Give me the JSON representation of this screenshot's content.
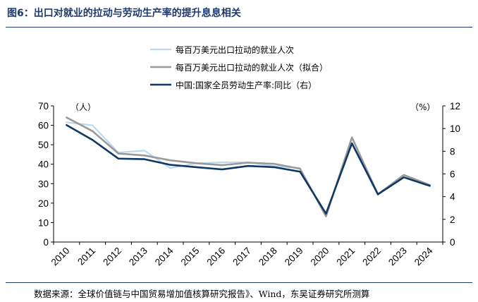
{
  "figure": {
    "title": "图6：出口对就业的拉动与劳动生产率的提升息息相关",
    "source": "数据来源：全球价值链与中国贸易增加值核算研究报告》、Wind，东吴证券研究所测算"
  },
  "chart_data": {
    "type": "line",
    "categories": [
      "2010",
      "2011",
      "2012",
      "2013",
      "2014",
      "2015",
      "2016",
      "2017",
      "2018",
      "2019",
      "2020",
      "2021",
      "2022",
      "2023",
      "2024"
    ],
    "y_left": {
      "unit": "（人）",
      "ylim": [
        0,
        70
      ],
      "ticks": [
        "0",
        "10",
        "20",
        "30",
        "40",
        "50",
        "60",
        "70"
      ]
    },
    "y_right": {
      "unit": "（%）",
      "ylim": [
        0,
        12
      ],
      "ticks": [
        "0",
        "2",
        "4",
        "6",
        "8",
        "10",
        "12"
      ]
    },
    "series": [
      {
        "name": "每百万美元出口拉动的就业人次",
        "axis": "left",
        "color": "#bcd9f0",
        "values": [
          61.5,
          60,
          46,
          47,
          38,
          40.5,
          41,
          41,
          39,
          38,
          null,
          null,
          null,
          null,
          null
        ]
      },
      {
        "name": "每百万美元出口拉动的就业人次（拟合）",
        "axis": "left",
        "color": "#9a9a9a",
        "values": [
          64,
          57,
          45.5,
          44.5,
          42,
          40.5,
          39.5,
          40.8,
          40.2,
          37.7,
          13.2,
          53.8,
          24.5,
          34.5,
          29.3
        ]
      },
      {
        "name": "中国:国家全员劳动生产率:同比（右）",
        "axis": "right",
        "color": "#0f3864",
        "values": [
          10.3,
          9.0,
          7.35,
          7.3,
          6.8,
          6.6,
          6.4,
          6.7,
          6.6,
          6.2,
          2.5,
          8.7,
          4.2,
          5.7,
          4.95
        ]
      }
    ]
  }
}
